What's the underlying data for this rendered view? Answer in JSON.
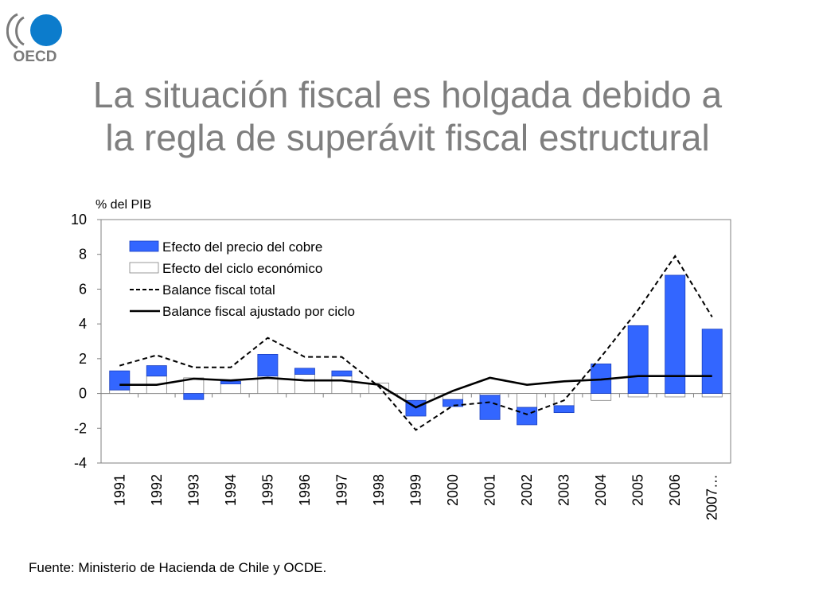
{
  "logo": {
    "text": "OECD"
  },
  "slide": {
    "title_line1": "La situación fiscal es holgada debido a",
    "title_line2": "la regla de superávit fiscal estructural",
    "source": "Fuente: Ministerio de Hacienda de Chile y OCDE."
  },
  "colors": {
    "title": "#7f7f7f",
    "copper_bar": "#3366ff",
    "cycle_bar": "#ffffff",
    "logo_blue": "#0c7ccc",
    "logo_gray": "#7a7a7a"
  },
  "chart_data": {
    "type": "bar",
    "unit_label": "% del PIB",
    "categories": [
      "1991",
      "1992",
      "1993",
      "1994",
      "1995",
      "1996",
      "1997",
      "1998",
      "1999",
      "2000",
      "2001",
      "2002",
      "2003",
      "2004",
      "2005",
      "2006",
      "2007…"
    ],
    "ylim": [
      -4,
      10
    ],
    "yticks": [
      -4,
      -2,
      0,
      2,
      4,
      6,
      8,
      10
    ],
    "grid": false,
    "legend_position": "top-left",
    "series": [
      {
        "name": "Efecto del precio del cobre",
        "kind": "bar",
        "color": "#3366ff",
        "values": [
          1.1,
          0.6,
          -0.35,
          0.15,
          1.25,
          0.35,
          0.3,
          0,
          -0.9,
          -0.4,
          -1.4,
          -1.0,
          -0.4,
          1.7,
          3.9,
          6.8,
          3.7
        ]
      },
      {
        "name": "Efecto del ciclo económico",
        "kind": "bar",
        "color": "#ffffff",
        "values": [
          0.2,
          1.0,
          0.9,
          0.55,
          1.0,
          1.1,
          1.0,
          0.6,
          -0.4,
          -0.35,
          -0.1,
          -0.8,
          -0.7,
          -0.4,
          -0.2,
          -0.2,
          -0.2
        ]
      },
      {
        "name": "Balance fiscal total",
        "kind": "line",
        "style": "dashed",
        "values": [
          1.6,
          2.2,
          1.5,
          1.5,
          3.2,
          2.1,
          2.1,
          0.4,
          -2.1,
          -0.7,
          -0.5,
          -1.2,
          -0.4,
          2.1,
          4.8,
          7.9,
          4.4
        ]
      },
      {
        "name": "Balance fiscal ajustado por ciclo",
        "kind": "line",
        "style": "solid",
        "values": [
          0.5,
          0.5,
          0.85,
          0.75,
          0.9,
          0.75,
          0.75,
          0.5,
          -0.8,
          0.15,
          0.9,
          0.5,
          0.7,
          0.8,
          1.0,
          1.0,
          1.0
        ]
      }
    ]
  }
}
